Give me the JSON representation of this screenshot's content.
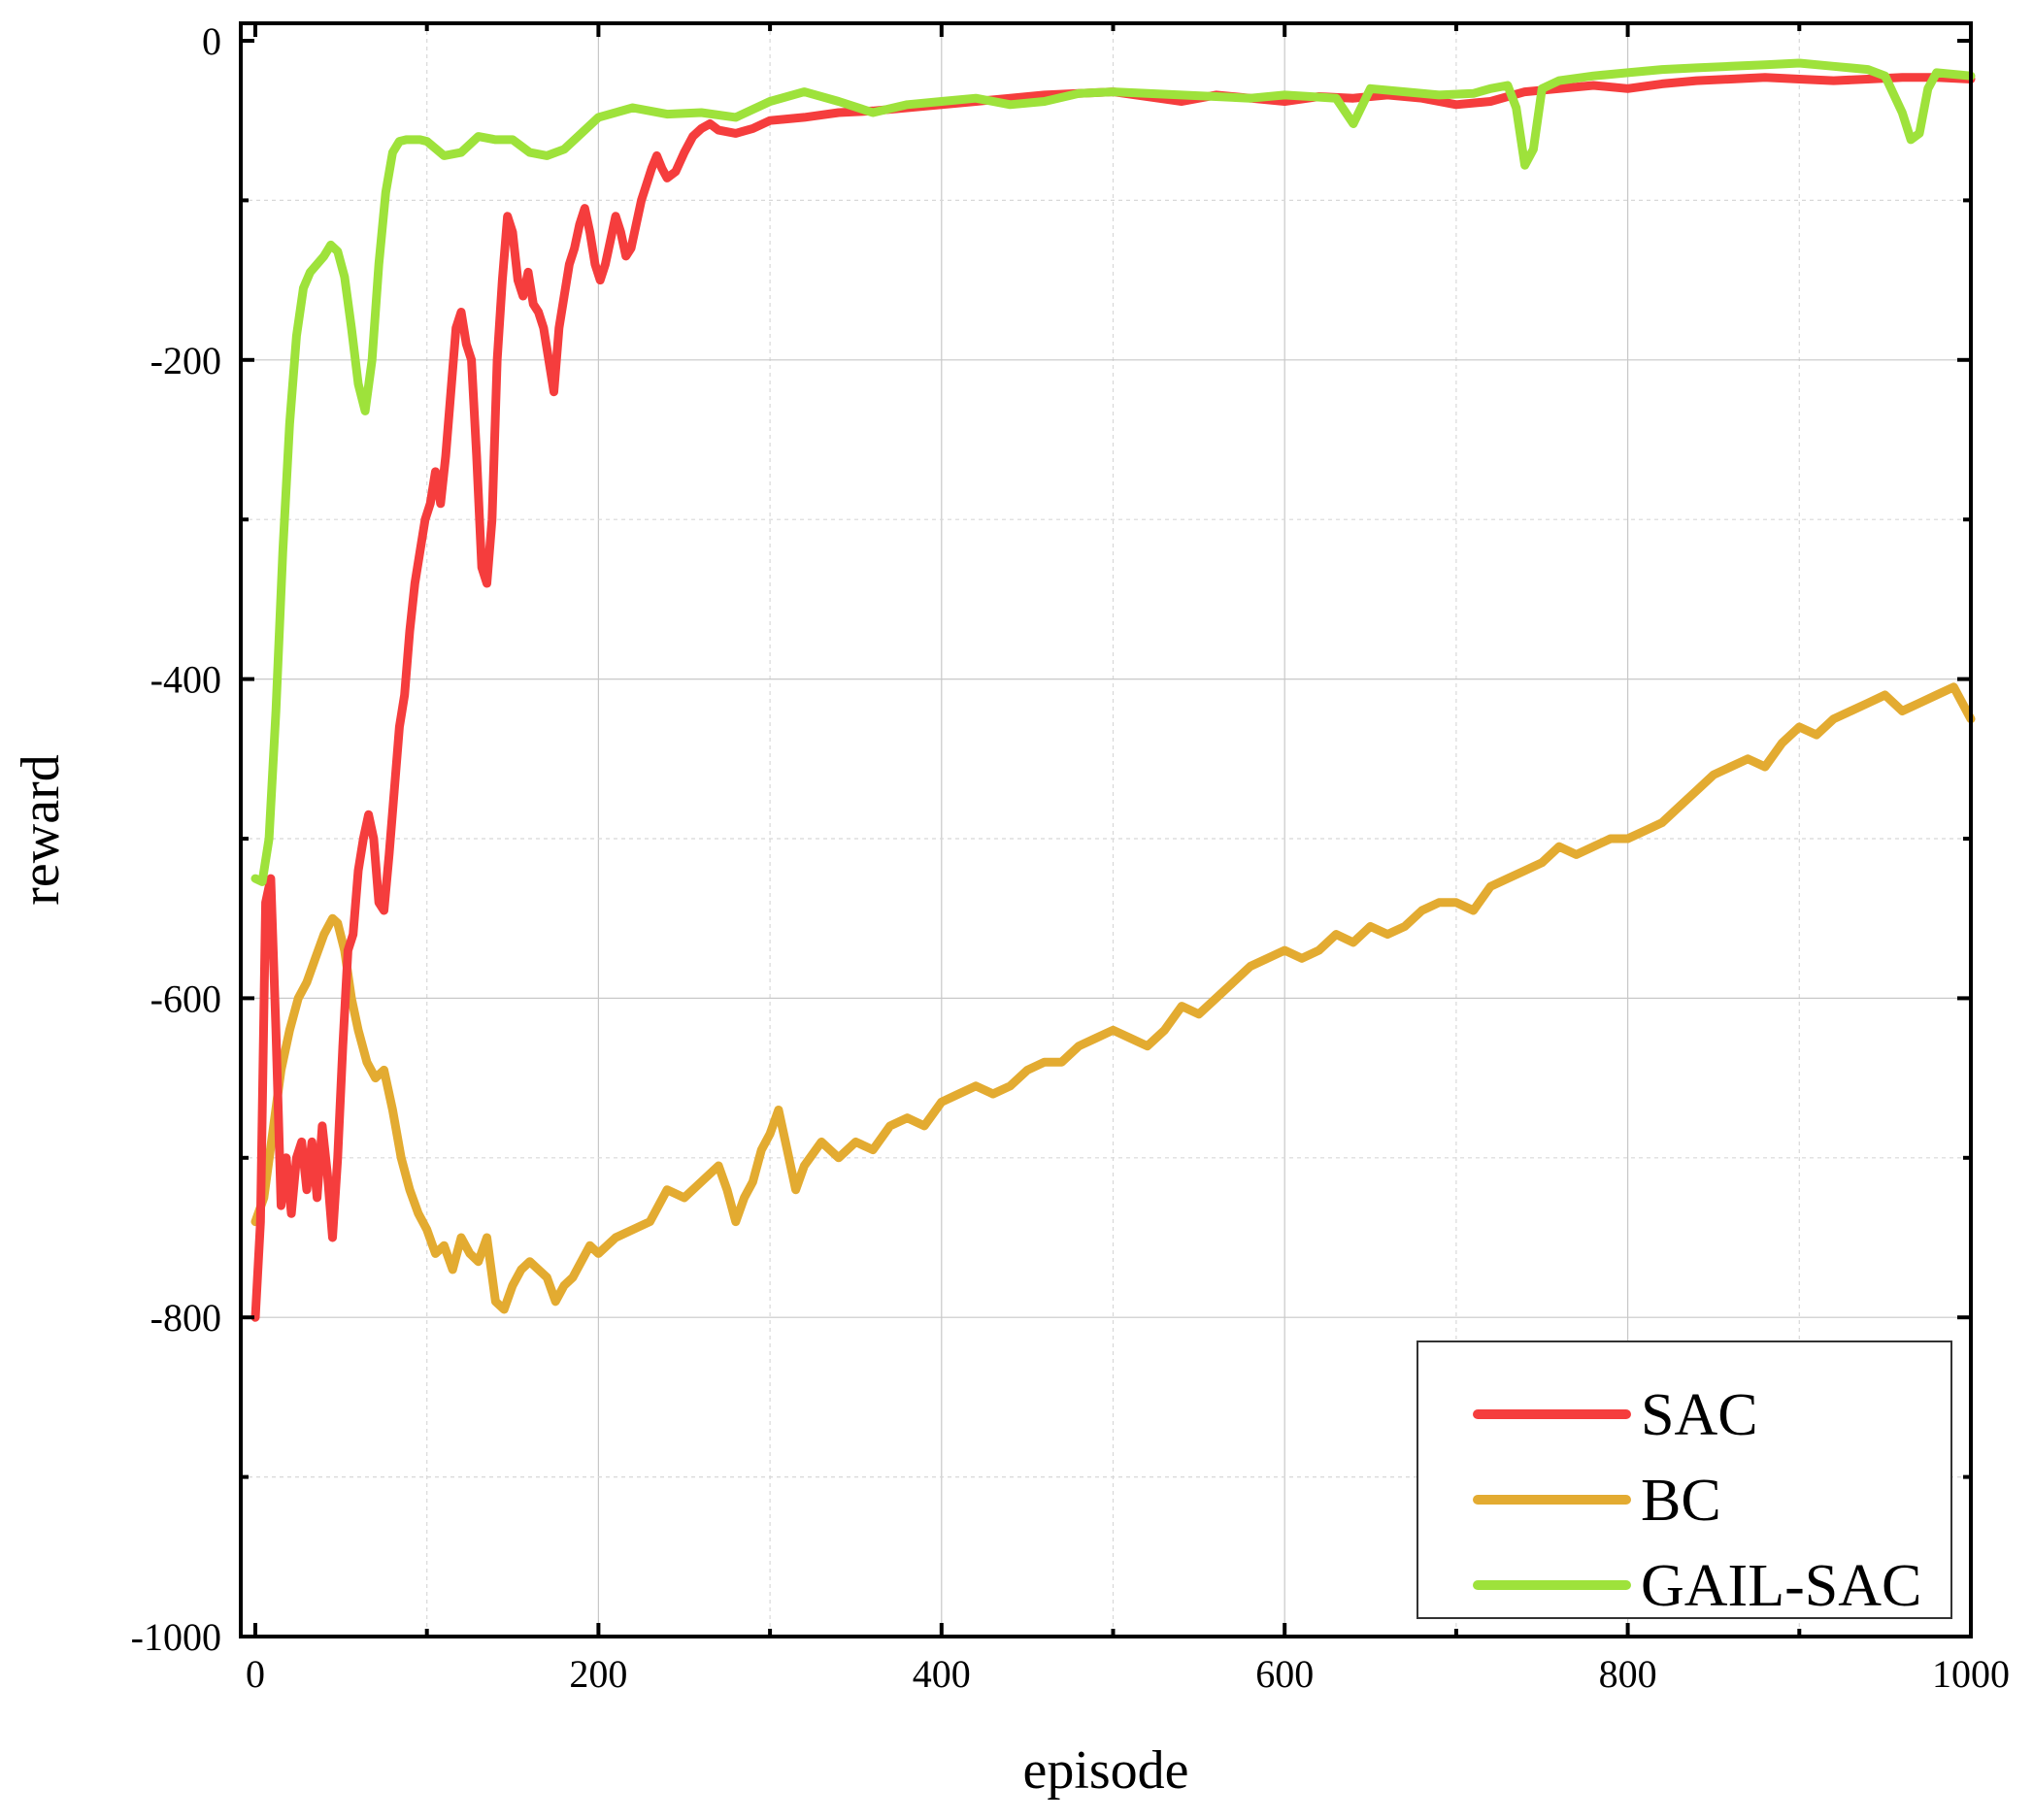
{
  "chart_data": {
    "type": "line",
    "title": "",
    "xlabel": "episode",
    "ylabel": "reward",
    "xlim": [
      0,
      1000
    ],
    "ylim": [
      -1000,
      0
    ],
    "xticks": [
      0,
      200,
      400,
      600,
      800,
      1000
    ],
    "yticks": [
      0,
      -200,
      -400,
      -600,
      -800,
      -1000
    ],
    "xtick_labels": [
      "0",
      "200",
      "400",
      "600",
      "800",
      "1000"
    ],
    "ytick_labels": [
      "0",
      "-200",
      "-400",
      "-600",
      "-800",
      "-1000"
    ],
    "grid": true,
    "legend_position": "bottom-right",
    "series": [
      {
        "name": "SAC",
        "color": "#f53d3d",
        "x": [
          0,
          3,
          6,
          9,
          12,
          15,
          18,
          21,
          24,
          27,
          30,
          33,
          36,
          39,
          42,
          45,
          48,
          51,
          54,
          57,
          60,
          63,
          66,
          69,
          72,
          75,
          78,
          81,
          84,
          87,
          90,
          93,
          96,
          99,
          102,
          105,
          108,
          111,
          114,
          117,
          120,
          123,
          126,
          129,
          132,
          135,
          138,
          141,
          144,
          147,
          150,
          153,
          156,
          159,
          162,
          165,
          168,
          171,
          174,
          177,
          180,
          183,
          186,
          189,
          192,
          195,
          198,
          201,
          204,
          207,
          210,
          213,
          216,
          219,
          222,
          225,
          228,
          231,
          234,
          237,
          240,
          245,
          250,
          255,
          260,
          265,
          270,
          280,
          290,
          300,
          320,
          340,
          360,
          380,
          400,
          420,
          440,
          460,
          480,
          500,
          520,
          540,
          560,
          580,
          600,
          620,
          640,
          660,
          680,
          700,
          720,
          740,
          760,
          780,
          800,
          820,
          840,
          860,
          880,
          900,
          920,
          940,
          960,
          980,
          1000
        ],
        "values": [
          -800,
          -740,
          -540,
          -525,
          -620,
          -730,
          -700,
          -735,
          -700,
          -690,
          -720,
          -690,
          -725,
          -680,
          -710,
          -750,
          -700,
          -630,
          -570,
          -560,
          -520,
          -500,
          -485,
          -500,
          -540,
          -545,
          -510,
          -470,
          -430,
          -410,
          -370,
          -340,
          -320,
          -300,
          -290,
          -270,
          -290,
          -260,
          -220,
          -180,
          -170,
          -190,
          -200,
          -260,
          -330,
          -340,
          -300,
          -200,
          -150,
          -110,
          -120,
          -150,
          -160,
          -145,
          -165,
          -170,
          -180,
          -200,
          -220,
          -180,
          -160,
          -140,
          -130,
          -115,
          -105,
          -120,
          -140,
          -150,
          -140,
          -125,
          -110,
          -120,
          -135,
          -130,
          -115,
          -100,
          -90,
          -80,
          -72,
          -80,
          -86,
          -82,
          -70,
          -60,
          -55,
          -52,
          -56,
          -58,
          -55,
          -50,
          -48,
          -45,
          -44,
          -42,
          -40,
          -38,
          -36,
          -34,
          -33,
          -32,
          -35,
          -38,
          -34,
          -36,
          -38,
          -35,
          -36,
          -34,
          -36,
          -40,
          -38,
          -32,
          -30,
          -28,
          -30,
          -27,
          -25,
          -24,
          -23,
          -24,
          -25,
          -24,
          -23,
          -23,
          -24
        ]
      },
      {
        "name": "BC",
        "color": "#e3ab31",
        "x": [
          0,
          5,
          10,
          15,
          20,
          25,
          30,
          35,
          40,
          45,
          48,
          52,
          56,
          60,
          65,
          70,
          75,
          80,
          85,
          90,
          95,
          100,
          105,
          110,
          115,
          120,
          125,
          130,
          135,
          140,
          145,
          150,
          155,
          160,
          165,
          170,
          175,
          180,
          185,
          190,
          195,
          200,
          210,
          220,
          230,
          240,
          250,
          260,
          270,
          275,
          280,
          285,
          290,
          295,
          300,
          305,
          310,
          315,
          320,
          330,
          340,
          350,
          360,
          370,
          380,
          390,
          400,
          410,
          420,
          430,
          440,
          450,
          460,
          470,
          480,
          490,
          500,
          510,
          520,
          530,
          540,
          550,
          560,
          570,
          580,
          590,
          600,
          610,
          620,
          630,
          640,
          650,
          660,
          670,
          680,
          690,
          700,
          710,
          720,
          730,
          740,
          750,
          760,
          770,
          780,
          790,
          800,
          810,
          820,
          830,
          840,
          850,
          860,
          870,
          880,
          890,
          900,
          910,
          920,
          930,
          940,
          950,
          960,
          970,
          980,
          990,
          1000
        ],
        "values": [
          -740,
          -725,
          -685,
          -645,
          -620,
          -600,
          -590,
          -575,
          -560,
          -550,
          -553,
          -570,
          -600,
          -620,
          -640,
          -650,
          -645,
          -670,
          -700,
          -720,
          -735,
          -745,
          -760,
          -755,
          -770,
          -750,
          -760,
          -765,
          -750,
          -790,
          -795,
          -780,
          -770,
          -765,
          -770,
          -775,
          -790,
          -780,
          -775,
          -765,
          -755,
          -760,
          -750,
          -745,
          -740,
          -720,
          -725,
          -715,
          -705,
          -720,
          -740,
          -725,
          -715,
          -695,
          -685,
          -670,
          -695,
          -720,
          -705,
          -690,
          -700,
          -690,
          -695,
          -680,
          -675,
          -680,
          -665,
          -660,
          -655,
          -660,
          -655,
          -645,
          -640,
          -640,
          -630,
          -625,
          -620,
          -625,
          -630,
          -620,
          -605,
          -610,
          -600,
          -590,
          -580,
          -575,
          -570,
          -575,
          -570,
          -560,
          -565,
          -555,
          -560,
          -555,
          -545,
          -540,
          -540,
          -545,
          -530,
          -525,
          -520,
          -515,
          -505,
          -510,
          -505,
          -500,
          -500,
          -495,
          -490,
          -480,
          -470,
          -460,
          -455,
          -450,
          -455,
          -440,
          -430,
          -435,
          -425,
          -420,
          -415,
          -410,
          -420,
          -415,
          -410,
          -405,
          -425
        ]
      },
      {
        "name": "GAIL-SAC",
        "color": "#9ee23b",
        "x": [
          0,
          4,
          8,
          12,
          16,
          20,
          24,
          28,
          32,
          36,
          40,
          44,
          48,
          52,
          56,
          60,
          64,
          68,
          72,
          76,
          80,
          84,
          88,
          92,
          96,
          100,
          110,
          120,
          130,
          140,
          150,
          160,
          170,
          180,
          190,
          200,
          220,
          240,
          260,
          280,
          300,
          320,
          340,
          360,
          380,
          400,
          420,
          440,
          460,
          480,
          500,
          520,
          540,
          560,
          580,
          600,
          615,
          630,
          640,
          650,
          670,
          690,
          710,
          720,
          730,
          735,
          740,
          745,
          750,
          760,
          780,
          800,
          820,
          840,
          860,
          880,
          900,
          920,
          940,
          950,
          960,
          965,
          970,
          975,
          980,
          1000
        ],
        "values": [
          -525,
          -527,
          -500,
          -420,
          -320,
          -240,
          -185,
          -155,
          -145,
          -140,
          -135,
          -128,
          -132,
          -148,
          -180,
          -215,
          -232,
          -200,
          -140,
          -95,
          -70,
          -63,
          -62,
          -62,
          -62,
          -63,
          -72,
          -70,
          -60,
          -62,
          -62,
          -70,
          -72,
          -68,
          -58,
          -48,
          -42,
          -46,
          -45,
          -48,
          -38,
          -32,
          -38,
          -45,
          -40,
          -38,
          -36,
          -40,
          -38,
          -33,
          -32,
          -33,
          -34,
          -35,
          -36,
          -34,
          -35,
          -36,
          -52,
          -30,
          -32,
          -34,
          -33,
          -30,
          -28,
          -42,
          -78,
          -68,
          -30,
          -25,
          -22,
          -20,
          -18,
          -17,
          -16,
          -15,
          -14,
          -16,
          -18,
          -22,
          -45,
          -62,
          -58,
          -30,
          -20,
          -22
        ]
      }
    ]
  }
}
